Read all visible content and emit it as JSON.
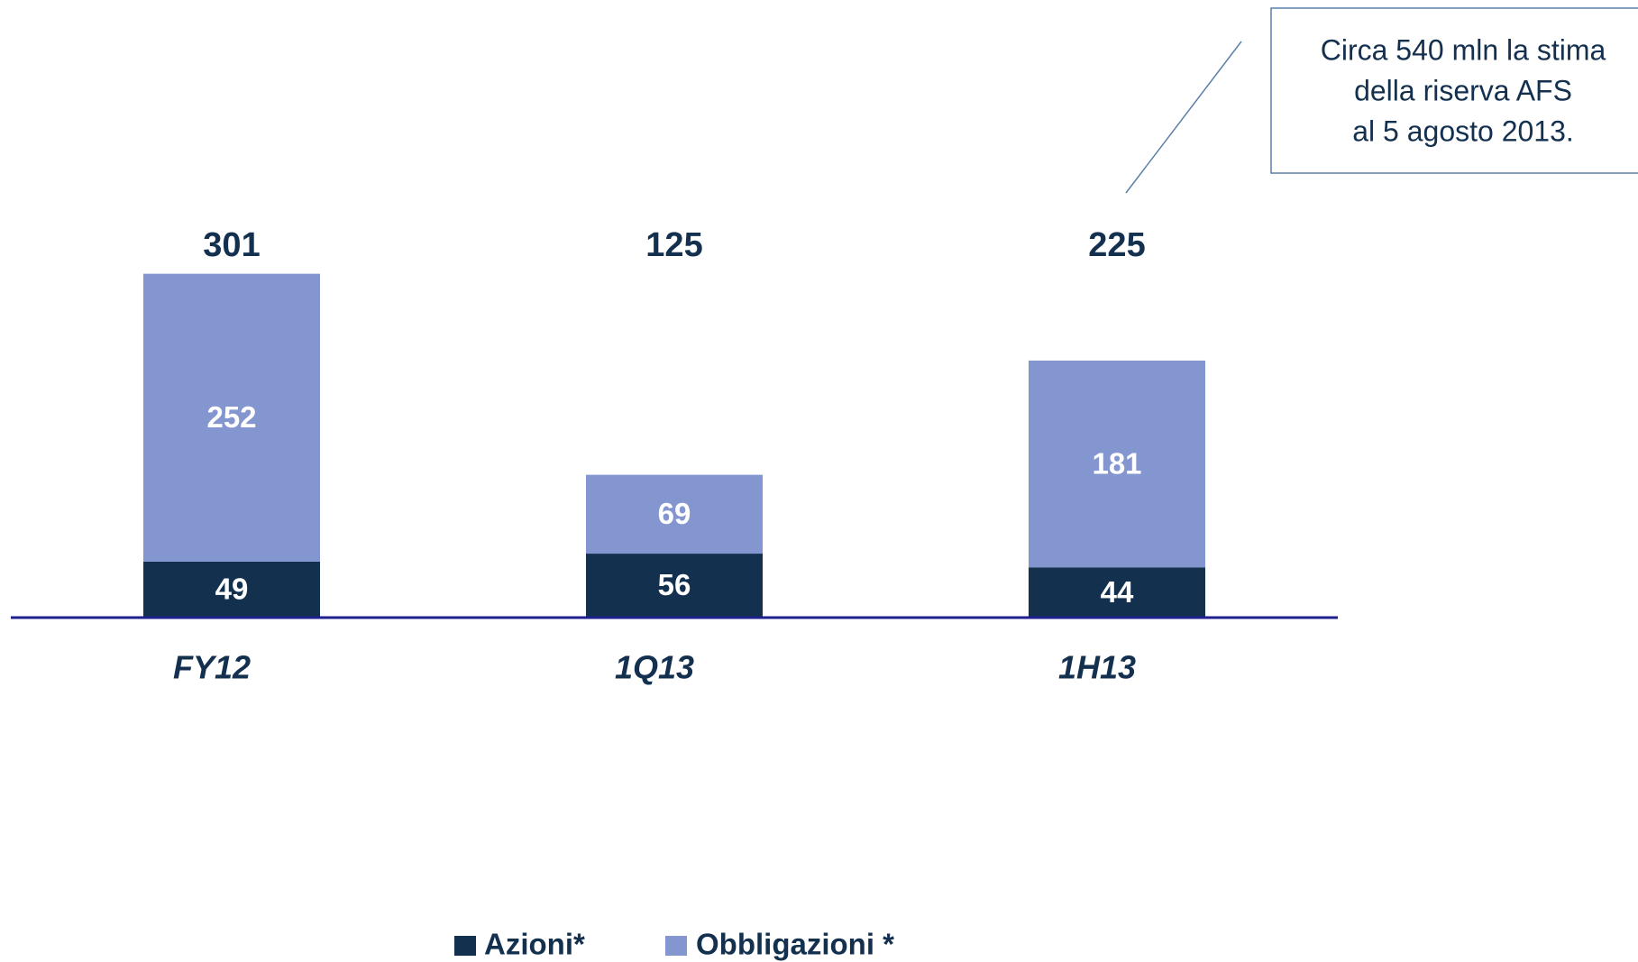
{
  "chart_data": {
    "type": "stacked_bar",
    "categories": [
      "FY12",
      "1Q13",
      "1H13"
    ],
    "series": [
      {
        "name": "Azioni*",
        "color": "#14304f",
        "values": [
          49,
          56,
          44
        ]
      },
      {
        "name": "Obbligazioni *",
        "color": "#8496cf",
        "values": [
          252,
          69,
          181
        ]
      }
    ],
    "totals": [
      301,
      125,
      225
    ],
    "annotation": [
      "Circa 540 mln la stima",
      "della riserva AFS",
      "al 5 agosto 2013."
    ]
  }
}
